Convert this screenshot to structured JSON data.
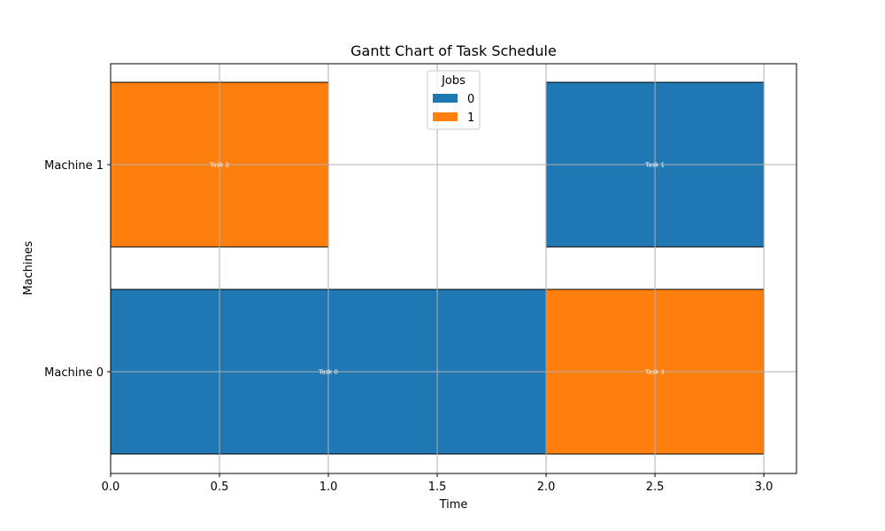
{
  "chart_data": {
    "type": "gantt",
    "title": "Gantt Chart of Task Schedule",
    "xlabel": "Time",
    "ylabel": "Machines",
    "xlim": [
      0.0,
      3.15
    ],
    "x_ticks": [
      "0.0",
      "0.5",
      "1.0",
      "1.5",
      "2.0",
      "2.5",
      "3.0"
    ],
    "x_tick_values": [
      0.0,
      0.5,
      1.0,
      1.5,
      2.0,
      2.5,
      3.0
    ],
    "categories": [
      "Machine 0",
      "Machine 1"
    ],
    "grid": true,
    "legend": {
      "title": "Jobs",
      "placement": "upper-center",
      "entries": [
        {
          "label": "0",
          "color": "#1f77b4"
        },
        {
          "label": "1",
          "color": "#ff7f0e"
        }
      ]
    },
    "tasks": [
      {
        "label": "Task 0",
        "machine": "Machine 0",
        "job": "0",
        "start": 0.0,
        "end": 2.0
      },
      {
        "label": "Task 3",
        "machine": "Machine 0",
        "job": "1",
        "start": 2.0,
        "end": 3.0
      },
      {
        "label": "Task 2",
        "machine": "Machine 1",
        "job": "1",
        "start": 0.0,
        "end": 1.0
      },
      {
        "label": "Task 1",
        "machine": "Machine 1",
        "job": "0",
        "start": 2.0,
        "end": 3.0
      }
    ]
  }
}
